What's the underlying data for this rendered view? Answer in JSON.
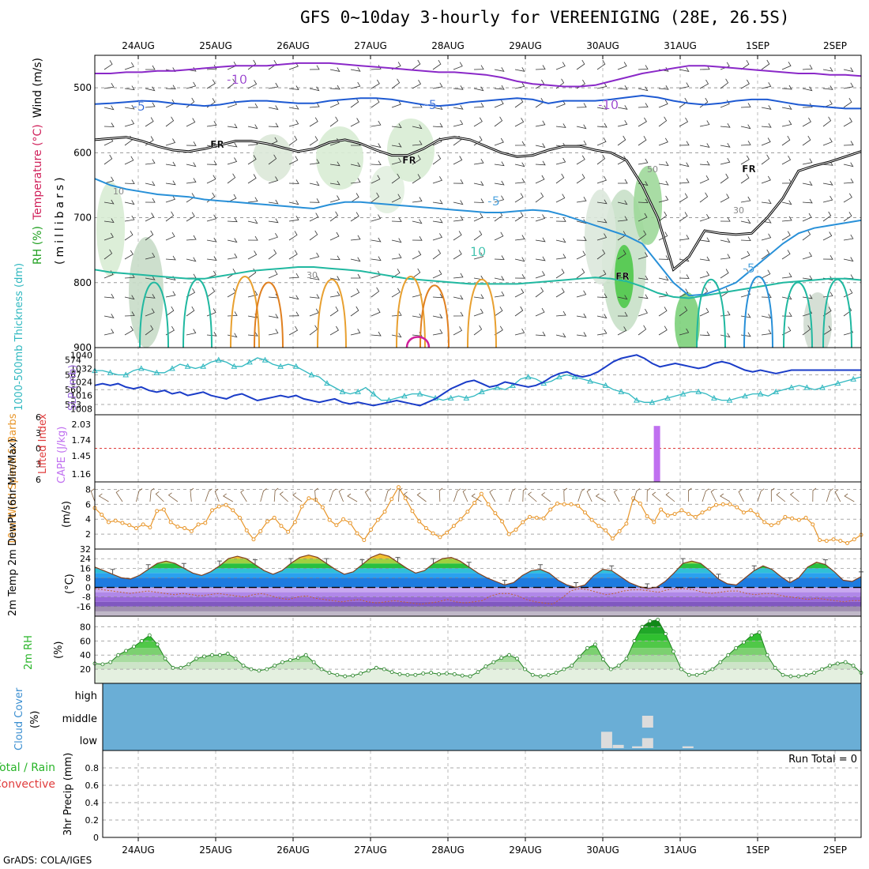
{
  "title": "GFS 0~10day 3-hourly for VEREENIGING (28E, 26.5S)",
  "credit": "GrADS: COLA/IGES",
  "dates": [
    "24AUG",
    "25AUG",
    "26AUG",
    "27AUG",
    "28AUG",
    "29AUG",
    "30AUG",
    "31AUG",
    "1SEP",
    "2SEP"
  ],
  "colors": {
    "rh": "#3cc83c",
    "temp_warm": "#e08a1e",
    "temp_cool": "#1e5ad2",
    "temp_cold": "#8a28c8",
    "freezing": "#000000",
    "thickness": "#30b8c0",
    "slp": "#1a3cc8",
    "cape": "#c070f0",
    "lifted": "#e03c3c",
    "wind": "#e8962a",
    "barb": "#806040",
    "rh2m": "#28b428",
    "cloud": "#6aaed6",
    "precip_total": "#28b428",
    "precip_conv": "#e03c3c"
  },
  "chart_data": [
    {
      "type": "line",
      "panel": "upper_air",
      "ylabel_parts": [
        "RH (%)",
        "Temperature (°C)",
        "Wind (m/s)"
      ],
      "ylabel_unit": "(millibars)",
      "yticks": [
        500,
        600,
        700,
        800,
        900
      ],
      "ylim": [
        900,
        450
      ],
      "isotherm_labels": [
        "-10",
        "-10",
        "-5",
        "-5",
        "-5",
        "FR",
        "FR",
        "FR",
        "FR",
        "-5",
        "10",
        "5",
        "FR"
      ],
      "rh_labels": [
        "10",
        "30",
        "50",
        "30"
      ],
      "series": [
        {
          "name": "-10",
          "values": [
            478,
            478,
            476,
            476,
            474,
            474,
            472,
            470,
            468,
            466,
            466,
            466,
            464,
            462,
            462,
            462,
            464,
            466,
            468,
            470,
            472,
            474,
            476,
            476,
            478,
            480,
            484,
            490,
            494,
            496,
            498,
            498,
            496,
            490,
            484,
            478,
            474,
            470,
            466,
            466,
            468,
            470,
            472,
            474,
            476,
            478,
            478,
            480,
            480,
            482
          ]
        },
        {
          "name": "-5",
          "values": [
            525,
            524,
            522,
            520,
            521,
            524,
            526,
            528,
            526,
            522,
            520,
            520,
            522,
            524,
            524,
            520,
            518,
            516,
            516,
            518,
            522,
            526,
            528,
            526,
            522,
            520,
            518,
            516,
            518,
            524,
            520,
            520,
            520,
            518,
            515,
            512,
            515,
            520,
            524,
            526,
            524,
            520,
            518,
            518,
            522,
            526,
            528,
            530,
            532,
            532
          ]
        },
        {
          "name": "FR",
          "values": [
            580,
            578,
            576,
            582,
            590,
            596,
            598,
            594,
            588,
            582,
            582,
            586,
            592,
            598,
            594,
            584,
            580,
            586,
            596,
            604,
            604,
            594,
            580,
            576,
            580,
            590,
            600,
            606,
            604,
            596,
            590,
            590,
            596,
            600,
            612,
            650,
            700,
            780,
            760,
            720,
            724,
            726,
            724,
            700,
            670,
            628,
            620,
            614,
            606,
            598
          ]
        },
        {
          "name": "-5",
          "values": [
            640,
            650,
            656,
            660,
            664,
            666,
            668,
            672,
            674,
            676,
            678,
            680,
            682,
            684,
            686,
            680,
            676,
            676,
            678,
            680,
            682,
            684,
            686,
            688,
            690,
            692,
            692,
            690,
            688,
            690,
            696,
            704,
            712,
            720,
            728,
            740,
            770,
            800,
            820,
            818,
            810,
            800,
            780,
            760,
            740,
            724,
            716,
            712,
            708,
            704
          ]
        },
        {
          "name": "10",
          "values": [
            780,
            784,
            786,
            788,
            790,
            792,
            794,
            794,
            790,
            786,
            782,
            780,
            778,
            776,
            776,
            778,
            780,
            782,
            786,
            790,
            794,
            796,
            798,
            800,
            802,
            802,
            802,
            802,
            800,
            798,
            796,
            794,
            792,
            794,
            798,
            806,
            816,
            822,
            824,
            820,
            816,
            812,
            808,
            804,
            800,
            798,
            796,
            794,
            794,
            796
          ]
        }
      ]
    },
    {
      "type": "line",
      "panel": "thickness_slp",
      "ylabel_left": "1000-500mb Thickness (dm)",
      "ylabel_right": "SLP (mb)",
      "thickness_ticks": [
        553,
        560,
        567,
        574
      ],
      "slp_ticks": [
        1008,
        1016,
        1024,
        1032,
        1040
      ],
      "series": [
        {
          "name": "1000-500mb Thickness (dm)",
          "values": [
            569,
            569,
            568,
            567,
            567,
            569,
            570,
            569,
            568,
            568,
            570,
            572,
            571,
            570,
            571,
            573,
            574,
            573,
            571,
            571,
            573,
            575,
            574,
            572,
            571,
            572,
            571,
            569,
            567,
            566,
            563,
            561,
            559,
            558,
            559,
            561,
            558,
            555,
            555,
            556,
            557,
            558,
            558,
            557,
            556,
            555,
            556,
            557,
            556,
            557,
            559,
            560,
            561,
            560,
            562,
            565,
            566,
            565,
            563,
            564,
            566,
            567,
            566,
            565,
            564,
            563,
            562,
            560,
            559,
            558,
            555,
            554,
            554,
            555,
            556,
            557,
            558,
            559,
            559,
            558,
            556,
            555,
            555,
            556,
            557,
            558,
            558,
            557,
            559,
            560,
            561,
            562,
            561,
            560,
            561,
            562,
            563,
            564,
            565,
            566
          ]
        },
        {
          "name": "SLP (mb)",
          "values": [
            1022,
            1023,
            1022,
            1023,
            1021,
            1020,
            1021,
            1019,
            1018,
            1019,
            1017,
            1018,
            1016,
            1017,
            1018,
            1016,
            1015,
            1014,
            1016,
            1017,
            1015,
            1013,
            1014,
            1015,
            1016,
            1015,
            1016,
            1014,
            1013,
            1012,
            1013,
            1014,
            1012,
            1011,
            1012,
            1011,
            1010,
            1011,
            1012,
            1013,
            1012,
            1011,
            1010,
            1012,
            1014,
            1017,
            1020,
            1022,
            1024,
            1025,
            1023,
            1021,
            1022,
            1024,
            1023,
            1022,
            1021,
            1022,
            1024,
            1027,
            1029,
            1030,
            1028,
            1027,
            1028,
            1030,
            1033,
            1036,
            1038,
            1039,
            1040,
            1038,
            1035,
            1033,
            1034,
            1035,
            1034,
            1033,
            1032,
            1033,
            1035,
            1036,
            1035,
            1033,
            1031,
            1030,
            1031,
            1030,
            1029,
            1030,
            1031,
            1031,
            1031,
            1031,
            1031,
            1031,
            1031,
            1031,
            1031,
            1031
          ]
        }
      ]
    },
    {
      "type": "bar",
      "panel": "cape_li",
      "ylabel_left": "Lifted Index",
      "ylabel_right": "CAPE (J/kg)",
      "li_ticks": [
        "-6",
        "-3",
        "0",
        "3",
        "6"
      ],
      "cape_ticks": [
        "2.03",
        "1.74",
        "1.45",
        "1.16"
      ],
      "bars": [
        {
          "x_day": 6.7,
          "cape": 2.0
        }
      ]
    },
    {
      "type": "line",
      "panel": "wind10m",
      "ylabel": "10m Wind Speed & Barbs",
      "yunit": "(m/s)",
      "yticks": [
        2,
        4,
        6,
        8
      ],
      "ylim": [
        0,
        9
      ],
      "values": [
        5.5,
        4.6,
        3.6,
        3.8,
        3.5,
        3.2,
        2.8,
        3.3,
        2.9,
        5.1,
        5.3,
        3.6,
        3.0,
        2.8,
        2.4,
        3.3,
        3.5,
        5.2,
        5.7,
        5.9,
        5.2,
        4.2,
        2.5,
        1.3,
        2.4,
        3.7,
        4.2,
        3.1,
        2.3,
        3.6,
        5.7,
        6.8,
        6.6,
        5.6,
        3.9,
        3.2,
        4.0,
        3.5,
        2.1,
        1.2,
        2.6,
        3.9,
        5.0,
        6.7,
        8.3,
        6.8,
        5.1,
        3.7,
        2.8,
        2.1,
        1.6,
        2.2,
        3.1,
        4.0,
        5.0,
        6.2,
        7.4,
        6.0,
        4.8,
        3.7,
        2.0,
        2.6,
        3.6,
        4.3,
        4.2,
        4.1,
        5.3,
        6.1,
        6.0,
        6.0,
        5.8,
        4.9,
        3.9,
        3.1,
        2.5,
        1.4,
        2.4,
        3.4,
        6.8,
        6.1,
        4.4,
        3.6,
        5.3,
        4.5,
        4.7,
        5.2,
        4.7,
        4.3,
        4.9,
        5.4,
        5.9,
        6.0,
        6.0,
        5.6,
        4.9,
        5.2,
        4.6,
        3.6,
        3.2,
        3.5,
        4.3,
        4.1,
        3.9,
        4.2,
        3.3,
        1.2,
        1.1,
        1.3,
        1.1,
        0.8,
        1.3,
        1.9
      ]
    },
    {
      "type": "area",
      "panel": "temp2m",
      "ylabel": "2m Temp 2m DewPt (6hr Min/Max)",
      "yunit": "(°C)",
      "yticks": [
        -16,
        -8,
        0,
        8,
        16,
        24,
        32
      ],
      "ylim": [
        -24,
        32
      ],
      "series": [
        {
          "name": "2m Temp",
          "values": [
            17,
            14,
            11,
            8,
            7,
            10,
            15,
            20,
            22,
            20,
            16,
            12,
            10,
            13,
            18,
            24,
            26,
            24,
            19,
            14,
            11,
            14,
            20,
            25,
            27,
            25,
            20,
            15,
            11,
            13,
            19,
            25,
            28,
            26,
            21,
            16,
            12,
            14,
            20,
            24,
            25,
            22,
            17,
            12,
            8,
            5,
            2,
            4,
            10,
            14,
            15,
            12,
            6,
            2,
            0,
            2,
            10,
            15,
            14,
            9,
            4,
            1,
            -1,
            0,
            5,
            12,
            20,
            22,
            20,
            14,
            7,
            3,
            2,
            8,
            14,
            18,
            15,
            9,
            4,
            8,
            17,
            21,
            19,
            13,
            6,
            5,
            9
          ]
        },
        {
          "name": "2m DewPt",
          "values": [
            -1,
            -2,
            -3,
            -4,
            -5,
            -4,
            -3,
            -4,
            -5,
            -6,
            -5,
            -6,
            -7,
            -6,
            -5,
            -6,
            -7,
            -8,
            -6,
            -5,
            -7,
            -9,
            -10,
            -8,
            -7,
            -9,
            -10,
            -11,
            -12,
            -11,
            -10,
            -12,
            -13,
            -12,
            -11,
            -12,
            -13,
            -14,
            -13,
            -12,
            -10,
            -12,
            -13,
            -12,
            -11,
            -7,
            -5,
            -5,
            -7,
            -10,
            -12,
            -13,
            -14,
            -9,
            -3,
            -1,
            -2,
            -4,
            -6,
            -5,
            -3,
            -2,
            -2,
            -3,
            -4,
            -2,
            -1,
            -1,
            -2,
            -4,
            -5,
            -4,
            -3,
            -3,
            -5,
            -6,
            -5,
            -5,
            -7,
            -8,
            -9,
            -10,
            -9,
            -10,
            -11,
            -12,
            -11,
            -11
          ]
        }
      ]
    },
    {
      "type": "area",
      "panel": "rh2m",
      "ylabel": "2m RH",
      "yunit": "(%)",
      "yticks": [
        20,
        40,
        60,
        80
      ],
      "ylim": [
        0,
        95
      ],
      "values": [
        28,
        27,
        30,
        40,
        46,
        52,
        60,
        68,
        55,
        35,
        22,
        22,
        27,
        35,
        38,
        40,
        40,
        42,
        35,
        25,
        20,
        18,
        20,
        25,
        30,
        33,
        36,
        40,
        30,
        20,
        15,
        12,
        10,
        11,
        14,
        18,
        22,
        20,
        16,
        13,
        12,
        12,
        14,
        15,
        13,
        14,
        13,
        11,
        10,
        16,
        24,
        30,
        36,
        40,
        35,
        20,
        12,
        10,
        12,
        15,
        20,
        25,
        38,
        50,
        55,
        34,
        20,
        25,
        35,
        60,
        80,
        88,
        90,
        70,
        45,
        20,
        12,
        12,
        15,
        20,
        30,
        40,
        50,
        58,
        68,
        72,
        40,
        22,
        12,
        10,
        10,
        12,
        15,
        20,
        25,
        28,
        30,
        25,
        15
      ]
    },
    {
      "type": "bar",
      "panel": "cloud",
      "ylabel": "Cloud Cover",
      "yunit": "(%)",
      "levels": [
        "high",
        "middle",
        "low"
      ],
      "bars": [
        {
          "x_day": 6.05,
          "level": "low",
          "value": 90
        },
        {
          "x_day": 6.2,
          "level": "low",
          "value": 18
        },
        {
          "x_day": 6.45,
          "level": "low",
          "value": 10
        },
        {
          "x_day": 6.58,
          "level": "low",
          "value": 55
        },
        {
          "x_day": 6.58,
          "level": "middle",
          "value": 60
        },
        {
          "x_day": 7.1,
          "level": "low",
          "value": 10
        }
      ]
    },
    {
      "type": "bar",
      "panel": "precip",
      "ylabel_parts": [
        "Total / Rain",
        "Convective"
      ],
      "ylabel_right": "3hr Precip (mm)",
      "yticks": [
        "0",
        "0.2",
        "0.4",
        "0.6",
        "0.8"
      ],
      "ylim": [
        0,
        1
      ],
      "annotation": "Run Total = 0",
      "values": []
    }
  ]
}
